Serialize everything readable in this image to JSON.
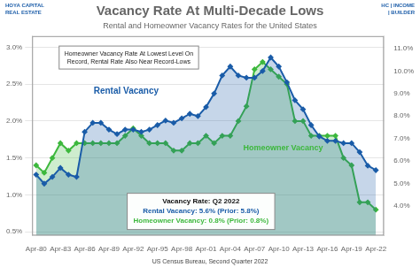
{
  "chart_data": {
    "type": "area",
    "title": "Vacancy Rate At Multi-Decade Lows",
    "subtitle": "Rental and Homeowner Vacancy Rates for the United States",
    "x": [
      1980,
      1981,
      1982,
      1983,
      1984,
      1985,
      1986,
      1987,
      1988,
      1989,
      1990,
      1991,
      1992,
      1993,
      1994,
      1995,
      1996,
      1997,
      1998,
      1999,
      2000,
      2001,
      2002,
      2003,
      2004,
      2005,
      2006,
      2007,
      2008,
      2009,
      2010,
      2011,
      2012,
      2013,
      2014,
      2015,
      2016,
      2017,
      2018,
      2019,
      2020,
      2021,
      2022
    ],
    "series": [
      {
        "name": "Rental Vacancy",
        "color": "#1a5ca8",
        "axis": "y2",
        "marker": "diamond",
        "values": [
          5.4,
          5.0,
          5.3,
          5.7,
          5.4,
          5.3,
          7.3,
          7.7,
          7.7,
          7.4,
          7.2,
          7.4,
          7.4,
          7.3,
          7.4,
          7.6,
          7.8,
          7.7,
          7.9,
          8.1,
          8.0,
          8.4,
          9.0,
          9.8,
          10.2,
          9.8,
          9.7,
          9.7,
          10.0,
          10.6,
          10.2,
          9.5,
          8.7,
          8.3,
          7.6,
          7.1,
          6.9,
          6.9,
          6.8,
          6.8,
          6.4,
          5.8,
          5.6
        ]
      },
      {
        "name": "Homeowner Vacancy",
        "color": "#3db83d",
        "marker": "diamond",
        "values": [
          1.4,
          1.3,
          1.5,
          1.7,
          1.6,
          1.7,
          1.7,
          1.7,
          1.7,
          1.7,
          1.7,
          1.8,
          1.9,
          1.8,
          1.7,
          1.7,
          1.7,
          1.6,
          1.6,
          1.7,
          1.7,
          1.8,
          1.7,
          1.8,
          1.8,
          2.0,
          2.2,
          2.7,
          2.8,
          2.7,
          2.6,
          2.5,
          2.0,
          2.0,
          1.8,
          1.8,
          1.8,
          1.8,
          1.5,
          1.4,
          0.9,
          0.9,
          0.8
        ]
      }
    ],
    "xlim": [
      1979.5,
      2023.0
    ],
    "xticks": [
      {
        "value": 1980,
        "label": "Apr-80"
      },
      {
        "value": 1983,
        "label": "Apr-83"
      },
      {
        "value": 1986,
        "label": "Apr-86"
      },
      {
        "value": 1989,
        "label": "Apr-89"
      },
      {
        "value": 1992,
        "label": "Apr-92"
      },
      {
        "value": 1995,
        "label": "Apr-95"
      },
      {
        "value": 1998,
        "label": "Apr-98"
      },
      {
        "value": 2001,
        "label": "Apr-01"
      },
      {
        "value": 2004,
        "label": "Apr-04"
      },
      {
        "value": 2007,
        "label": "Apr-07"
      },
      {
        "value": 2010,
        "label": "Apr-10"
      },
      {
        "value": 2013,
        "label": "Apr-13"
      },
      {
        "value": 2016,
        "label": "Apr-16"
      },
      {
        "value": 2019,
        "label": "Apr-19"
      },
      {
        "value": 2022,
        "label": "Apr-22"
      }
    ],
    "ylim": [
      0.45,
      3.15
    ],
    "yticks": [
      {
        "value": 0.5,
        "label": "0.5%"
      },
      {
        "value": 1.0,
        "label": "1.0%"
      },
      {
        "value": 1.5,
        "label": "1.5%"
      },
      {
        "value": 2.0,
        "label": "2.0%"
      },
      {
        "value": 2.5,
        "label": "2.5%"
      },
      {
        "value": 3.0,
        "label": "3.0%"
      }
    ],
    "y2lim": [
      2.7,
      11.55
    ],
    "y2ticks": [
      {
        "value": 4.0,
        "label": "4.0%"
      },
      {
        "value": 5.0,
        "label": "5.0%"
      },
      {
        "value": 6.0,
        "label": "6.0%"
      },
      {
        "value": 7.0,
        "label": "7.0%"
      },
      {
        "value": 8.0,
        "label": "8.0%"
      },
      {
        "value": 9.0,
        "label": "9.0%"
      },
      {
        "value": 10.0,
        "label": "10.0%"
      },
      {
        "value": 11.0,
        "label": "11.0%"
      }
    ],
    "grid": true,
    "annotations": [
      "Homeowner Vacancy Rate At Lowest Level On",
      "Record, Rental Rate Also Near Record-Lows",
      "Vacancy Rate: Q2 2022",
      "Rental Vacancy: 5.6% (Prior: 5.8%)",
      "Homeowner Vacancy: 0.8% (Prior: 0.8%)",
      "HOYA CAPITAL",
      "REAL ESTATE",
      "HC | INCOME",
      "   | BUILDER",
      "US Census Bureau, Second Quarter 2022"
    ]
  }
}
